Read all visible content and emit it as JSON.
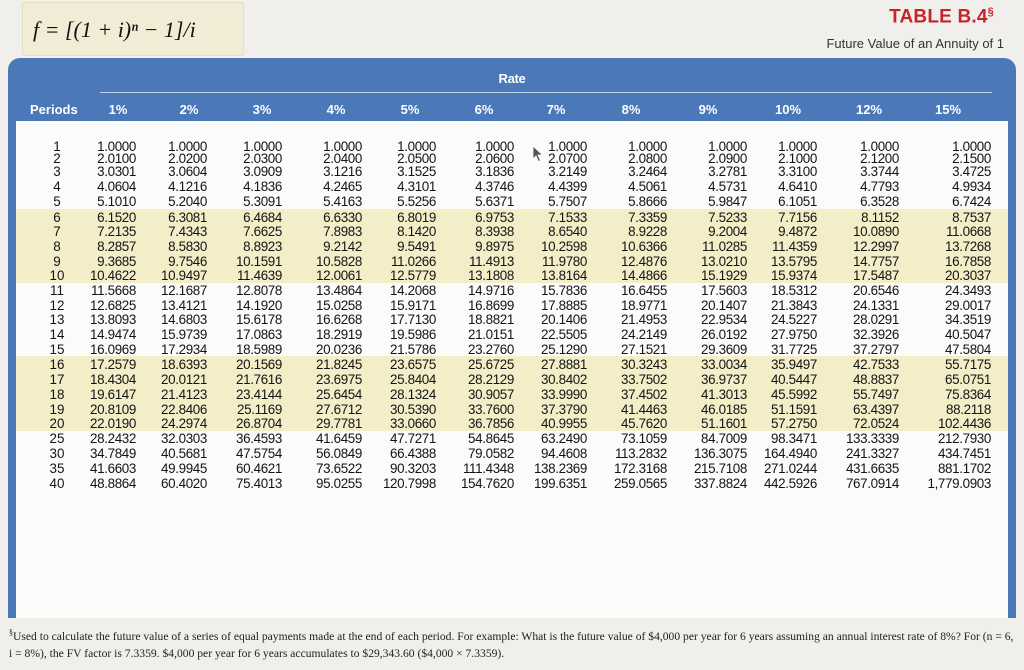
{
  "formula": "f = [(1 + i)ⁿ − 1]/i",
  "title": {
    "text": "TABLE B.4",
    "superscript": "§"
  },
  "subtitle": "Future Value of an Annuity of 1",
  "rate_label": "Rate",
  "periods_label": "Periods",
  "rates": [
    "1%",
    "2%",
    "3%",
    "4%",
    "5%",
    "6%",
    "7%",
    "8%",
    "9%",
    "10%",
    "12%",
    "15%"
  ],
  "periods": [
    "1",
    "2",
    "3",
    "4",
    "5",
    "6",
    "7",
    "8",
    "9",
    "10",
    "11",
    "12",
    "13",
    "14",
    "15",
    "16",
    "17",
    "18",
    "19",
    "20",
    "25",
    "30",
    "35",
    "40"
  ],
  "rows": [
    [
      "1.0000",
      "1.0000",
      "1.0000",
      "1.0000",
      "1.0000",
      "1.0000",
      "1.0000",
      "1.0000",
      "1.0000",
      "1.0000",
      "1.0000",
      "1.0000"
    ],
    [
      "2.0100",
      "2.0200",
      "2.0300",
      "2.0400",
      "2.0500",
      "2.0600",
      "2.0700",
      "2.0800",
      "2.0900",
      "2.1000",
      "2.1200",
      "2.1500"
    ],
    [
      "3.0301",
      "3.0604",
      "3.0909",
      "3.1216",
      "3.1525",
      "3.1836",
      "3.2149",
      "3.2464",
      "3.2781",
      "3.3100",
      "3.3744",
      "3.4725"
    ],
    [
      "4.0604",
      "4.1216",
      "4.1836",
      "4.2465",
      "4.3101",
      "4.3746",
      "4.4399",
      "4.5061",
      "4.5731",
      "4.6410",
      "4.7793",
      "4.9934"
    ],
    [
      "5.1010",
      "5.2040",
      "5.3091",
      "5.4163",
      "5.5256",
      "5.6371",
      "5.7507",
      "5.8666",
      "5.9847",
      "6.1051",
      "6.3528",
      "6.7424"
    ],
    [
      "6.1520",
      "6.3081",
      "6.4684",
      "6.6330",
      "6.8019",
      "6.9753",
      "7.1533",
      "7.3359",
      "7.5233",
      "7.7156",
      "8.1152",
      "8.7537"
    ],
    [
      "7.2135",
      "7.4343",
      "7.6625",
      "7.8983",
      "8.1420",
      "8.3938",
      "8.6540",
      "8.9228",
      "9.2004",
      "9.4872",
      "10.0890",
      "11.0668"
    ],
    [
      "8.2857",
      "8.5830",
      "8.8923",
      "9.2142",
      "9.5491",
      "9.8975",
      "10.2598",
      "10.6366",
      "11.0285",
      "11.4359",
      "12.2997",
      "13.7268"
    ],
    [
      "9.3685",
      "9.7546",
      "10.1591",
      "10.5828",
      "11.0266",
      "11.4913",
      "11.9780",
      "12.4876",
      "13.0210",
      "13.5795",
      "14.7757",
      "16.7858"
    ],
    [
      "10.4622",
      "10.9497",
      "11.4639",
      "12.0061",
      "12.5779",
      "13.1808",
      "13.8164",
      "14.4866",
      "15.1929",
      "15.9374",
      "17.5487",
      "20.3037"
    ],
    [
      "11.5668",
      "12.1687",
      "12.8078",
      "13.4864",
      "14.2068",
      "14.9716",
      "15.7836",
      "16.6455",
      "17.5603",
      "18.5312",
      "20.6546",
      "24.3493"
    ],
    [
      "12.6825",
      "13.4121",
      "14.1920",
      "15.0258",
      "15.9171",
      "16.8699",
      "17.8885",
      "18.9771",
      "20.1407",
      "21.3843",
      "24.1331",
      "29.0017"
    ],
    [
      "13.8093",
      "14.6803",
      "15.6178",
      "16.6268",
      "17.7130",
      "18.8821",
      "20.1406",
      "21.4953",
      "22.9534",
      "24.5227",
      "28.0291",
      "34.3519"
    ],
    [
      "14.9474",
      "15.9739",
      "17.0863",
      "18.2919",
      "19.5986",
      "21.0151",
      "22.5505",
      "24.2149",
      "26.0192",
      "27.9750",
      "32.3926",
      "40.5047"
    ],
    [
      "16.0969",
      "17.2934",
      "18.5989",
      "20.0236",
      "21.5786",
      "23.2760",
      "25.1290",
      "27.1521",
      "29.3609",
      "31.7725",
      "37.2797",
      "47.5804"
    ],
    [
      "17.2579",
      "18.6393",
      "20.1569",
      "21.8245",
      "23.6575",
      "25.6725",
      "27.8881",
      "30.3243",
      "33.0034",
      "35.9497",
      "42.7533",
      "55.7175"
    ],
    [
      "18.4304",
      "20.0121",
      "21.7616",
      "23.6975",
      "25.8404",
      "28.2129",
      "30.8402",
      "33.7502",
      "36.9737",
      "40.5447",
      "48.8837",
      "65.0751"
    ],
    [
      "19.6147",
      "21.4123",
      "23.4144",
      "25.6454",
      "28.1324",
      "30.9057",
      "33.9990",
      "37.4502",
      "41.3013",
      "45.5992",
      "55.7497",
      "75.8364"
    ],
    [
      "20.8109",
      "22.8406",
      "25.1169",
      "27.6712",
      "30.5390",
      "33.7600",
      "37.3790",
      "41.4463",
      "46.0185",
      "51.1591",
      "63.4397",
      "88.2118"
    ],
    [
      "22.0190",
      "24.2974",
      "26.8704",
      "29.7781",
      "33.0660",
      "36.7856",
      "40.9955",
      "45.7620",
      "51.1601",
      "57.2750",
      "72.0524",
      "102.4436"
    ],
    [
      "28.2432",
      "32.0303",
      "36.4593",
      "41.6459",
      "47.7271",
      "54.8645",
      "63.2490",
      "73.1059",
      "84.7009",
      "98.3471",
      "133.3339",
      "212.7930"
    ],
    [
      "34.7849",
      "40.5681",
      "47.5754",
      "56.0849",
      "66.4388",
      "79.0582",
      "94.4608",
      "113.2832",
      "136.3075",
      "164.4940",
      "241.3327",
      "434.7451"
    ],
    [
      "41.6603",
      "49.9945",
      "60.4621",
      "73.6522",
      "90.3203",
      "111.4348",
      "138.2369",
      "172.3168",
      "215.7108",
      "271.0244",
      "431.6635",
      "881.1702"
    ],
    [
      "48.8864",
      "60.4020",
      "75.4013",
      "95.0255",
      "120.7998",
      "154.7620",
      "199.6351",
      "259.0565",
      "337.8824",
      "442.5926",
      "767.0914",
      "1,779.0903"
    ]
  ],
  "footnote": {
    "mark": "§",
    "text": "Used to calculate the future value of a series of equal payments made at the end of each period. For example: What is the future value of $4,000 per year for 6 years assuming an annual interest rate of 8%? For (n = 6, i = 8%), the FV factor is 7.3359. $4,000 per year for 6 years accumulates to $29,343.60 ($4,000 × 7.3359)."
  },
  "colors": {
    "header_blue": "#4a78b8",
    "band_yellow": "#f3edc8",
    "title_red": "#c1262c",
    "formula_bg": "#f1ecd5"
  }
}
